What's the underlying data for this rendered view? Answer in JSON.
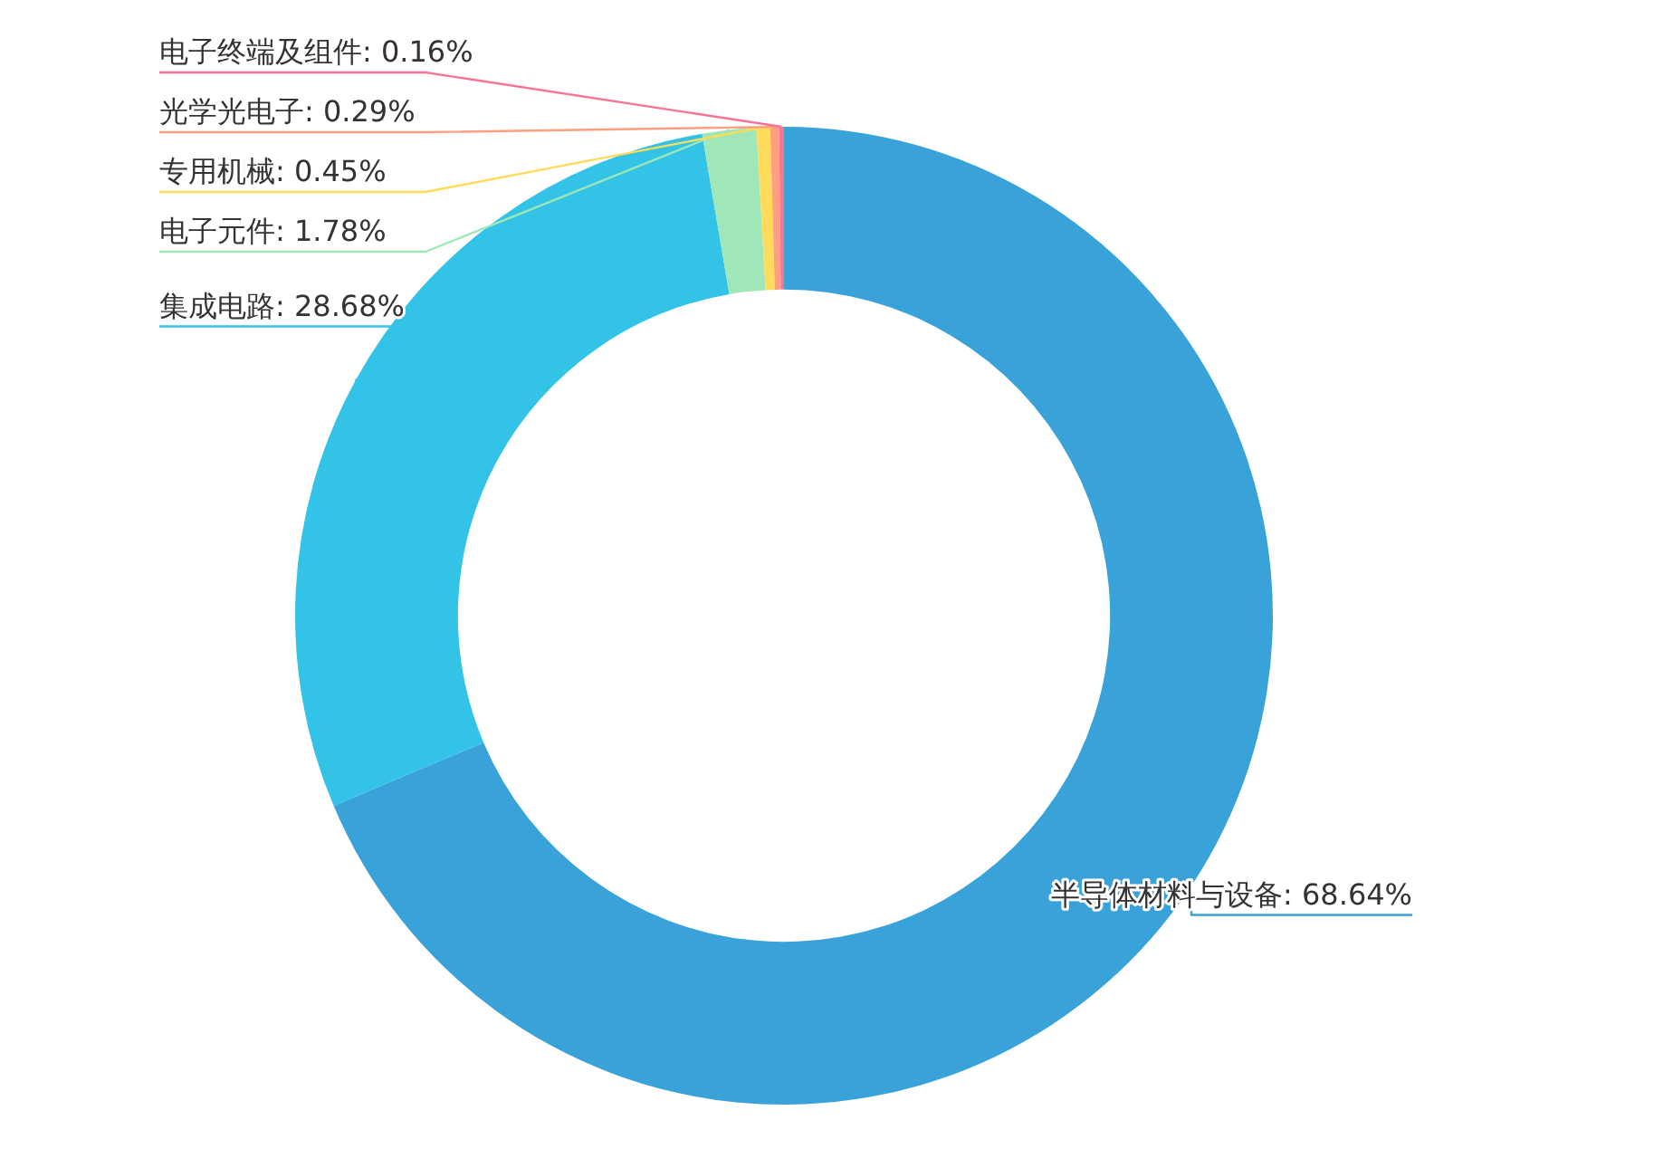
{
  "chart_data": {
    "type": "donut",
    "categories": [
      "半导体材料与设备",
      "集成电路",
      "电子元件",
      "专用机械",
      "光学光电子",
      "电子终端及组件"
    ],
    "values": [
      68.64,
      28.68,
      1.78,
      0.45,
      0.29,
      0.16
    ],
    "value_labels": [
      "68.64%",
      "28.68%",
      "1.78%",
      "0.45%",
      "0.29%",
      "0.16%"
    ],
    "colors": [
      "#38a2d9",
      "#33c3e6",
      "#9fe6b8",
      "#ffdb5c",
      "#ff9f7f",
      "#fb7293"
    ]
  }
}
